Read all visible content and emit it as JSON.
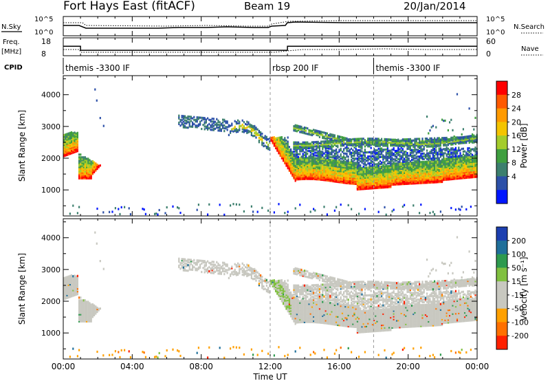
{
  "header": {
    "radar_title": "Fort Hays East (fitACF)",
    "beam": "Beam 19",
    "date": "20/Jan/2014"
  },
  "top_panels": {
    "nsky_label": "N.Sky",
    "nsearch_label": "N.Search",
    "nsky_ticks": [
      "10^5",
      "10^0"
    ],
    "nsearch_ticks": [
      "10^5",
      "10^0"
    ],
    "freq_label": "Freq.",
    "freq_unit": "[MHz]",
    "freq_ticks": [
      "18",
      "8"
    ],
    "nave_label": "Nave",
    "nave_ticks": [
      "60",
      "0"
    ],
    "cpid_label": "CPID",
    "cpid_segments": [
      {
        "label": "themis -3300 IF",
        "start_hour": 0,
        "end_hour": 12
      },
      {
        "label": "rbsp 200 IF",
        "start_hour": 12,
        "end_hour": 18
      },
      {
        "label": "themis -3300 IF",
        "start_hour": 18,
        "end_hour": 24
      }
    ],
    "freq_series": [
      {
        "t": 0,
        "mhz": 13.5
      },
      {
        "t": 1,
        "mhz": 13.5
      },
      {
        "t": 1,
        "mhz": 11
      },
      {
        "t": 13,
        "mhz": 11
      },
      {
        "t": 13,
        "mhz": 13.5
      },
      {
        "t": 24,
        "mhz": 13.5
      }
    ]
  },
  "chart_data": [
    {
      "type": "heatmap",
      "parameter": "Power",
      "ylabel": "Slant Range [km]",
      "ylim": [
        180,
        4600
      ],
      "yticks": [
        1000,
        2000,
        3000,
        4000
      ],
      "xlim_hours": [
        0,
        24
      ],
      "colorbar_label": "Power [dB]",
      "colorbar_ticks": [
        "28",
        "24",
        "20",
        "16",
        "12",
        "8",
        "4"
      ],
      "colorbar_colors": [
        "#ff0000",
        "#ff5a00",
        "#ff9a00",
        "#f4c400",
        "#a4cc2c",
        "#3f9f3f",
        "#3c7f6e",
        "#2c50a8",
        "#0016ff"
      ],
      "echo_regions": [
        {
          "start_hour": 0.0,
          "end_hour": 2.2,
          "range_km": [
            1300,
            2900
          ],
          "power_db": [
            8,
            30
          ]
        },
        {
          "start_hour": 6.6,
          "end_hour": 9.5,
          "range_km": [
            2700,
            3650
          ],
          "power_db": [
            4,
            14
          ]
        },
        {
          "start_hour": 9.5,
          "end_hour": 12.0,
          "range_km": [
            2200,
            3500
          ],
          "power_db": [
            6,
            20
          ]
        },
        {
          "start_hour": 12.0,
          "end_hour": 24.0,
          "range_km": [
            1000,
            3500
          ],
          "power_db": [
            4,
            30
          ]
        }
      ]
    },
    {
      "type": "heatmap",
      "parameter": "Velocity",
      "ylabel": "Slant Range [km]",
      "ylim": [
        180,
        4600
      ],
      "yticks": [
        1000,
        2000,
        3000,
        4000
      ],
      "xlim_hours": [
        0,
        24
      ],
      "colorbar_label": "Velocity [m s⁻¹]",
      "colorbar_ticks": [
        "200",
        "100",
        "50",
        "15",
        "-15",
        "-50",
        "-100",
        "-200"
      ],
      "colorbar_colors": [
        "#1c3fb0",
        "#1f6f9a",
        "#2e9a4e",
        "#80c040",
        "#c8c8c0",
        "#c8c8c0",
        "#ffa000",
        "#ff7000",
        "#ff2000"
      ],
      "echo_regions": [
        {
          "start_hour": 0.0,
          "end_hour": 2.2,
          "range_km": [
            1300,
            2900
          ],
          "velocity_ms": [
            -15,
            15
          ]
        },
        {
          "start_hour": 6.6,
          "end_hour": 12.0,
          "range_km": [
            2200,
            3650
          ],
          "velocity_ms": [
            -15,
            15
          ]
        },
        {
          "start_hour": 12.0,
          "end_hour": 24.0,
          "range_km": [
            1000,
            3500
          ],
          "velocity_ms": [
            -15,
            15
          ]
        }
      ]
    }
  ],
  "x_axis": {
    "ticks": [
      "00:00",
      "04:00",
      "08:00",
      "12:00",
      "16:00",
      "20:00",
      "00:00"
    ],
    "label": "Time UT"
  }
}
